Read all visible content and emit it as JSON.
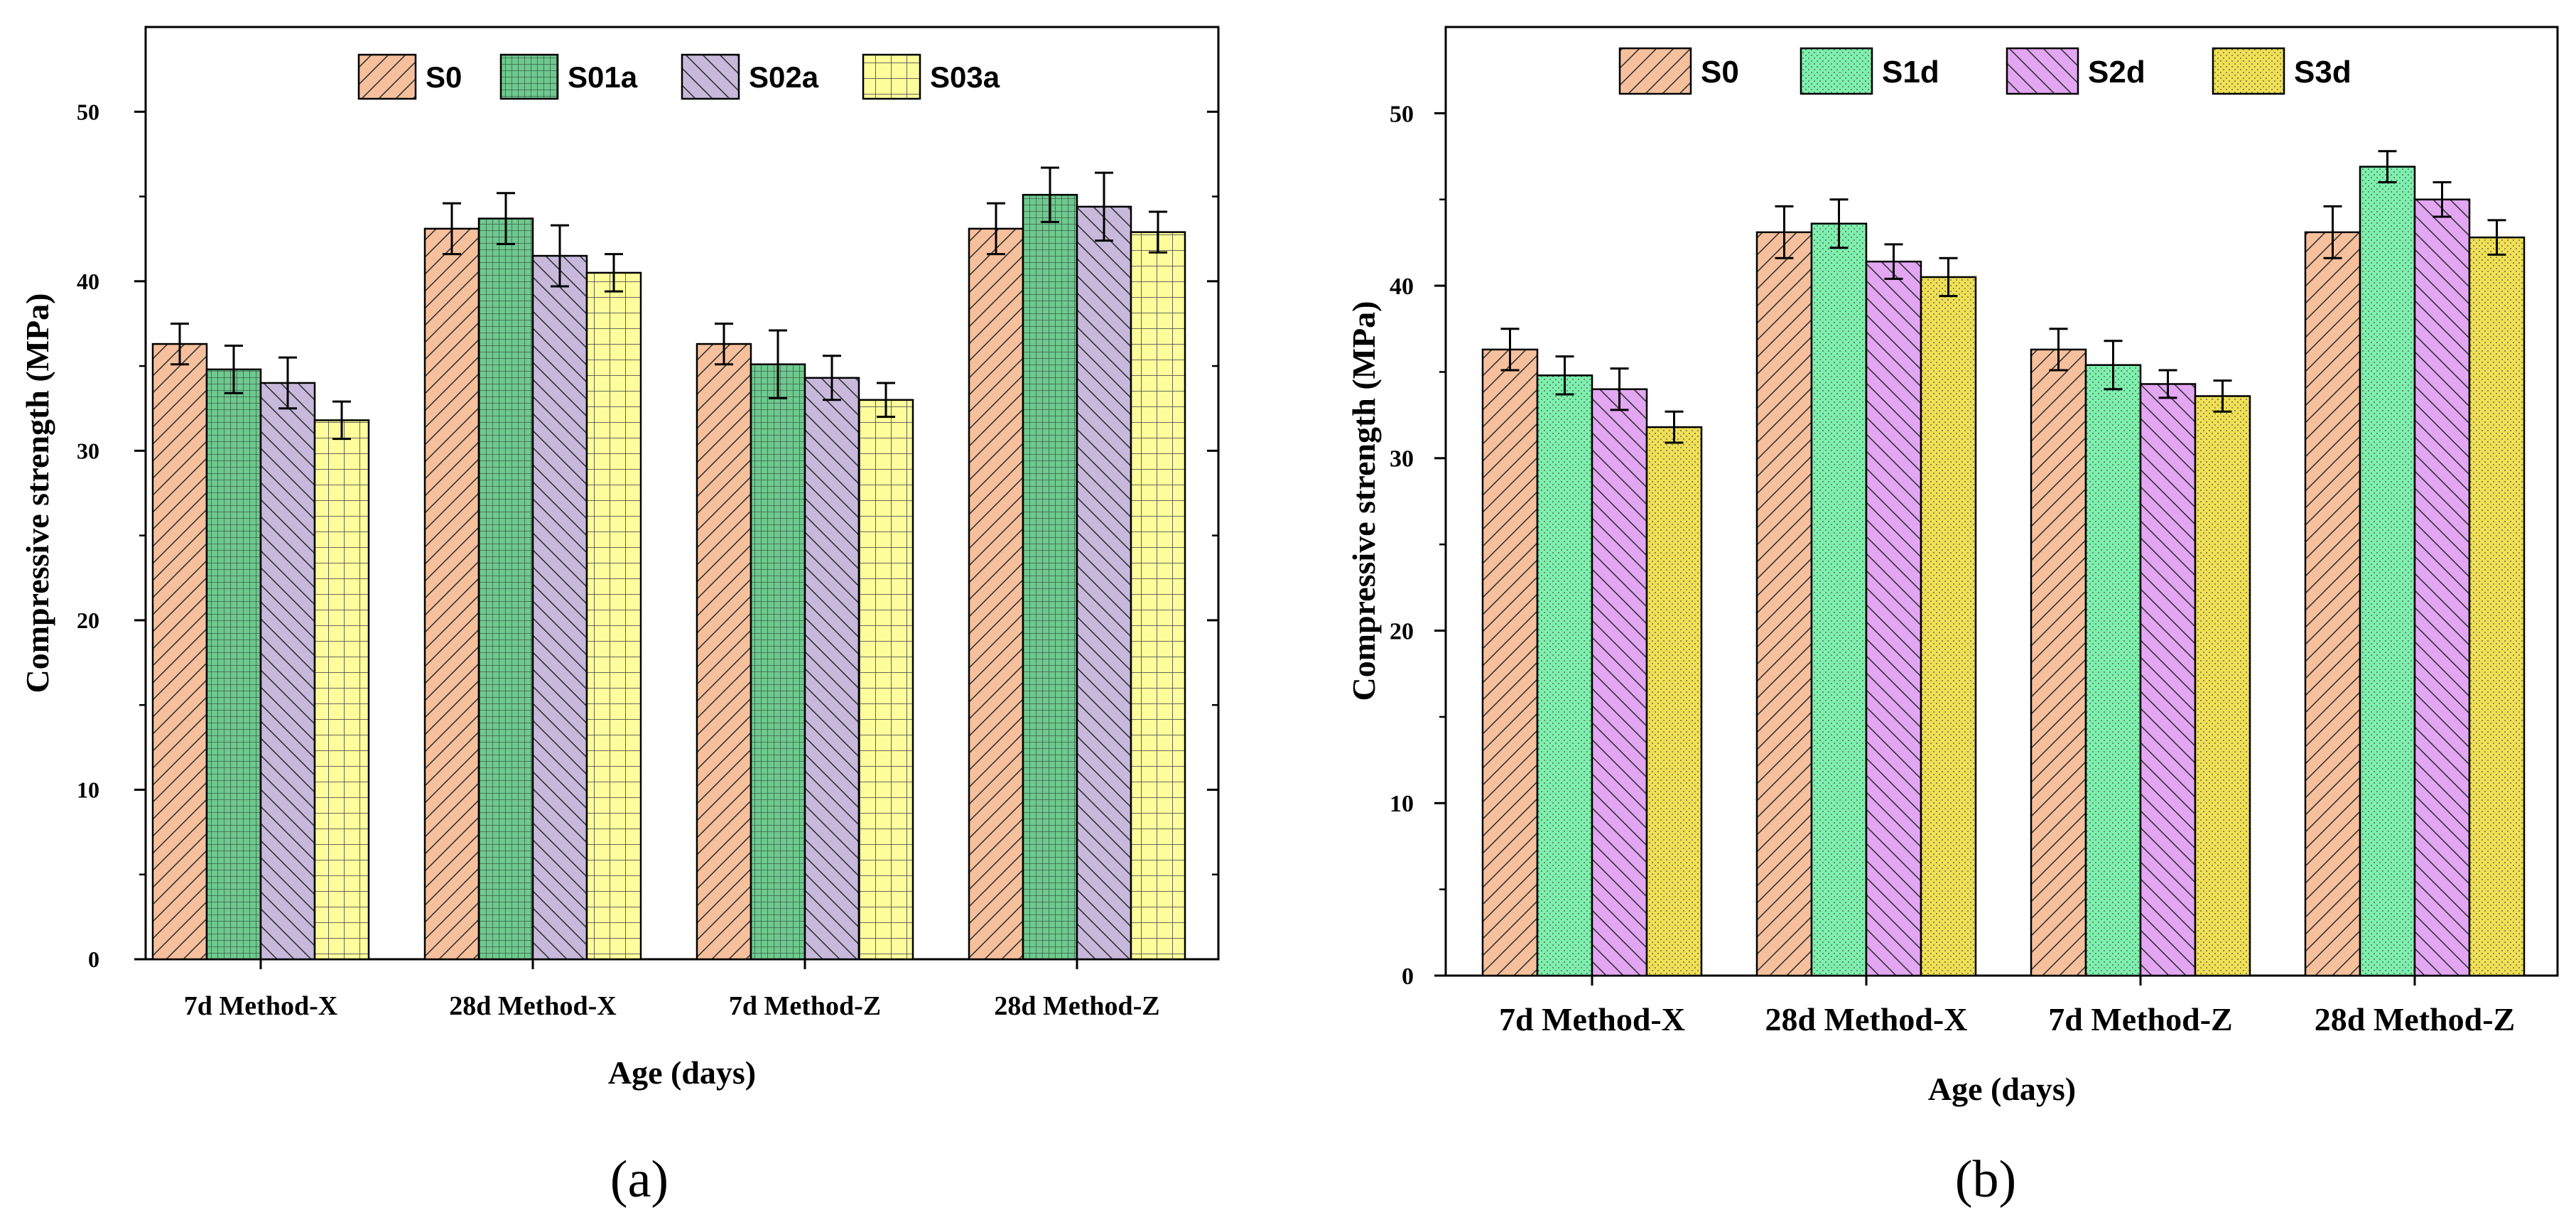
{
  "panels": [
    {
      "caption": "(a)",
      "chart_data": {
        "type": "bar",
        "xlabel": "Age (days)",
        "ylabel": "Compressive strength (MPa)",
        "ylim": [
          0,
          55
        ],
        "yticks": [
          0,
          10,
          20,
          30,
          40,
          50
        ],
        "categories": [
          "7d Method-X",
          "28d Method-X",
          "7d Method-Z",
          "28d Method-Z"
        ],
        "legend_position": "top-center",
        "series": [
          {
            "name": "S0",
            "values": [
              36.3,
              43.1,
              36.3,
              43.1
            ],
            "errors": [
              1.2,
              1.5,
              1.2,
              1.5
            ],
            "color": "#f7c09c",
            "pattern": "diag-right"
          },
          {
            "name": "S01a",
            "values": [
              34.8,
              43.7,
              35.1,
              45.1
            ],
            "errors": [
              1.4,
              1.5,
              2.0,
              1.6
            ],
            "color": "#6fc98f",
            "pattern": "grid"
          },
          {
            "name": "S02a",
            "values": [
              34.0,
              41.5,
              34.3,
              44.4
            ],
            "errors": [
              1.5,
              1.8,
              1.3,
              2.0
            ],
            "color": "#c8b9dc",
            "pattern": "diag-left"
          },
          {
            "name": "S03a",
            "values": [
              31.8,
              40.5,
              33.0,
              42.9
            ],
            "errors": [
              1.1,
              1.1,
              1.0,
              1.2
            ],
            "color": "#fdfd9c",
            "pattern": "grid-wide"
          }
        ]
      }
    },
    {
      "caption": "(b)",
      "chart_data": {
        "type": "bar",
        "xlabel": "Age (days)",
        "ylabel": "Compressive strength (MPa)",
        "ylim": [
          0,
          55
        ],
        "yticks": [
          0,
          10,
          20,
          30,
          40,
          50
        ],
        "categories": [
          "7d Method-X",
          "28d Method-X",
          "7d Method-Z",
          "28d Method-Z"
        ],
        "legend_position": "top-center",
        "series": [
          {
            "name": "S0",
            "values": [
              36.3,
              43.1,
              36.3,
              43.1
            ],
            "errors": [
              1.2,
              1.5,
              1.2,
              1.5
            ],
            "color": "#f7c09c",
            "pattern": "diag-right"
          },
          {
            "name": "S1d",
            "values": [
              34.8,
              43.6,
              35.4,
              46.9
            ],
            "errors": [
              1.1,
              1.4,
              1.4,
              0.9
            ],
            "color": "#7ef0ad",
            "pattern": "dots"
          },
          {
            "name": "S2d",
            "values": [
              34.0,
              41.4,
              34.3,
              45.0
            ],
            "errors": [
              1.2,
              1.0,
              0.8,
              1.0
            ],
            "color": "#e3a6f3",
            "pattern": "diag-left"
          },
          {
            "name": "S3d",
            "values": [
              31.8,
              40.5,
              33.6,
              42.8
            ],
            "errors": [
              0.9,
              1.1,
              0.9,
              1.0
            ],
            "color": "#f0e055",
            "pattern": "dots"
          }
        ]
      }
    }
  ]
}
